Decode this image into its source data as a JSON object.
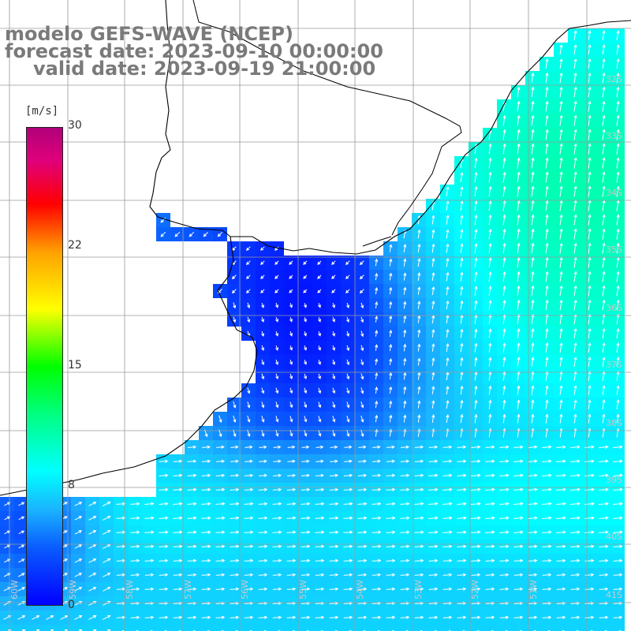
{
  "title": {
    "line1": "modelo GEFS-WAVE (NCEP)",
    "line2": "forecast date: 2023-09-10 00:00:00",
    "line3": "valid date: 2023-09-19 21:00:00"
  },
  "colorbar": {
    "unit": "[m/s]",
    "ticks": [
      "30",
      "22",
      "15",
      "8",
      "0"
    ],
    "range": [
      0,
      30
    ]
  },
  "lat_labels": [
    "32S",
    "33S",
    "34S",
    "35S",
    "36S",
    "37S",
    "38S",
    "39S",
    "40S",
    "41S"
  ],
  "lon_labels": [
    "60W",
    "59W",
    "58W",
    "57W",
    "56W",
    "55W",
    "54W",
    "53W",
    "52W",
    "51W"
  ],
  "colors": {
    "land": "#ffffff",
    "grid": "#9a9a9a",
    "coast": "#000000",
    "arrows": "#ffffff",
    "title": "#7a7a7a"
  }
}
